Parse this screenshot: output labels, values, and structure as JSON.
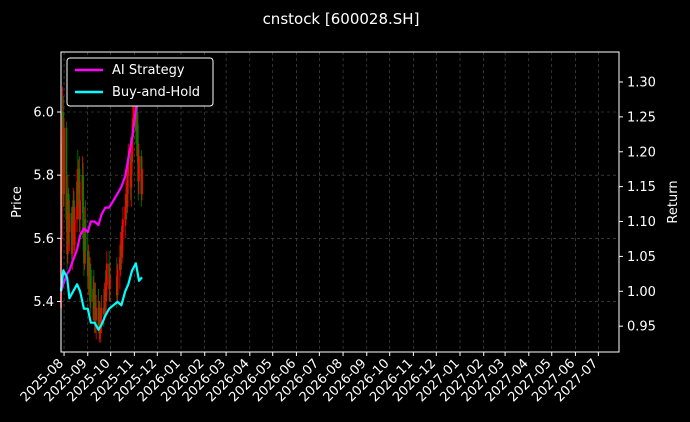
{
  "chart_data": {
    "type": "line",
    "title": "cnstock [600028.SH]",
    "ylabel": "Price",
    "y2label": "Return",
    "ylim": [
      5.24,
      6.19
    ],
    "y2lim": [
      0.913,
      1.343
    ],
    "xlim": [
      "2025-07-28",
      "2027-07-28"
    ],
    "yticks": [
      "5.4",
      "5.6",
      "5.8",
      "6.0"
    ],
    "y2ticks": [
      "0.95",
      "1.00",
      "1.05",
      "1.10",
      "1.15",
      "1.20",
      "1.25",
      "1.30"
    ],
    "xticks": [
      "2025-08",
      "2025-09",
      "2025-10",
      "2025-11",
      "2025-12",
      "2026-01",
      "2026-02",
      "2026-03",
      "2026-04",
      "2026-05",
      "2026-06",
      "2026-07",
      "2026-08",
      "2026-09",
      "2026-10",
      "2026-11",
      "2026-12",
      "2027-01",
      "2027-02",
      "2027-03",
      "2027-04",
      "2027-05",
      "2027-06",
      "2027-07"
    ],
    "grid": true,
    "legend_position": "top-left",
    "colors": {
      "up": "#ff0000",
      "down": "#008000",
      "strategy": "#ff00ff",
      "buyhold": "#00ffff",
      "grid": "#555555"
    },
    "candles_ohlc": [
      [
        "2025-07-28",
        5.38,
        5.62,
        5.36,
        5.6
      ],
      [
        "2025-07-29",
        5.6,
        5.9,
        5.56,
        5.86
      ],
      [
        "2025-07-30",
        5.86,
        6.08,
        5.8,
        6.0
      ],
      [
        "2025-07-31",
        6.0,
        6.05,
        5.7,
        5.74
      ],
      [
        "2025-08-01",
        5.74,
        5.98,
        5.7,
        5.95
      ],
      [
        "2025-08-04",
        5.95,
        5.97,
        5.62,
        5.66
      ],
      [
        "2025-08-05",
        5.66,
        5.74,
        5.5,
        5.55
      ],
      [
        "2025-08-06",
        5.55,
        5.8,
        5.52,
        5.74
      ],
      [
        "2025-08-07",
        5.74,
        5.76,
        5.58,
        5.62
      ],
      [
        "2025-08-08",
        5.62,
        5.72,
        5.56,
        5.68
      ],
      [
        "2025-08-11",
        5.68,
        5.7,
        5.52,
        5.55
      ],
      [
        "2025-08-12",
        5.55,
        5.7,
        5.5,
        5.64
      ],
      [
        "2025-08-13",
        5.64,
        5.76,
        5.58,
        5.72
      ],
      [
        "2025-08-14",
        5.72,
        5.75,
        5.56,
        5.58
      ],
      [
        "2025-08-15",
        5.58,
        5.7,
        5.54,
        5.66
      ],
      [
        "2025-08-18",
        5.66,
        5.82,
        5.62,
        5.78
      ],
      [
        "2025-08-19",
        5.78,
        5.88,
        5.7,
        5.74
      ],
      [
        "2025-08-20",
        5.74,
        5.85,
        5.66,
        5.82
      ],
      [
        "2025-08-21",
        5.82,
        5.86,
        5.62,
        5.66
      ],
      [
        "2025-08-22",
        5.66,
        5.78,
        5.6,
        5.72
      ],
      [
        "2025-08-25",
        5.72,
        5.86,
        5.68,
        5.8
      ],
      [
        "2025-08-26",
        5.8,
        5.84,
        5.56,
        5.6
      ],
      [
        "2025-08-27",
        5.6,
        5.66,
        5.48,
        5.52
      ],
      [
        "2025-08-28",
        5.52,
        5.7,
        5.5,
        5.66
      ],
      [
        "2025-08-29",
        5.66,
        5.72,
        5.52,
        5.56
      ],
      [
        "2025-09-01",
        5.56,
        5.62,
        5.44,
        5.48
      ],
      [
        "2025-09-02",
        5.48,
        5.58,
        5.42,
        5.54
      ],
      [
        "2025-09-03",
        5.54,
        5.56,
        5.4,
        5.44
      ],
      [
        "2025-09-04",
        5.44,
        5.54,
        5.38,
        5.5
      ],
      [
        "2025-09-05",
        5.5,
        5.52,
        5.36,
        5.4
      ],
      [
        "2025-09-08",
        5.4,
        5.48,
        5.34,
        5.44
      ],
      [
        "2025-09-09",
        5.44,
        5.5,
        5.34,
        5.38
      ],
      [
        "2025-09-10",
        5.38,
        5.46,
        5.3,
        5.42
      ],
      [
        "2025-09-11",
        5.42,
        5.46,
        5.3,
        5.34
      ],
      [
        "2025-09-12",
        5.34,
        5.42,
        5.28,
        5.38
      ],
      [
        "2025-09-15",
        5.38,
        5.44,
        5.3,
        5.32
      ],
      [
        "2025-09-16",
        5.32,
        5.4,
        5.27,
        5.36
      ],
      [
        "2025-09-17",
        5.36,
        5.4,
        5.28,
        5.3
      ],
      [
        "2025-09-18",
        5.3,
        5.38,
        5.27,
        5.35
      ],
      [
        "2025-09-19",
        5.35,
        5.42,
        5.3,
        5.38
      ],
      [
        "2025-09-22",
        5.38,
        5.44,
        5.32,
        5.36
      ],
      [
        "2025-09-23",
        5.36,
        5.46,
        5.34,
        5.43
      ],
      [
        "2025-09-24",
        5.43,
        5.5,
        5.36,
        5.4
      ],
      [
        "2025-09-25",
        5.4,
        5.48,
        5.35,
        5.45
      ],
      [
        "2025-09-26",
        5.45,
        5.56,
        5.42,
        5.52
      ],
      [
        "2025-09-29",
        5.52,
        5.56,
        5.4,
        5.44
      ],
      [
        "2025-09-30",
        5.44,
        5.52,
        5.4,
        5.48
      ],
      [
        "2025-10-09",
        5.48,
        5.54,
        5.38,
        5.42
      ],
      [
        "2025-10-10",
        5.42,
        5.52,
        5.4,
        5.5
      ],
      [
        "2025-10-13",
        5.5,
        5.58,
        5.44,
        5.54
      ],
      [
        "2025-10-14",
        5.54,
        5.62,
        5.48,
        5.58
      ],
      [
        "2025-10-15",
        5.58,
        5.64,
        5.5,
        5.54
      ],
      [
        "2025-10-16",
        5.54,
        5.66,
        5.52,
        5.62
      ],
      [
        "2025-10-17",
        5.62,
        5.7,
        5.56,
        5.66
      ],
      [
        "2025-10-20",
        5.66,
        5.74,
        5.6,
        5.7
      ],
      [
        "2025-10-21",
        5.7,
        5.78,
        5.64,
        5.74
      ],
      [
        "2025-10-22",
        5.74,
        5.82,
        5.66,
        5.7
      ],
      [
        "2025-10-23",
        5.7,
        5.84,
        5.68,
        5.8
      ],
      [
        "2025-10-24",
        5.8,
        5.9,
        5.74,
        5.86
      ],
      [
        "2025-10-27",
        5.86,
        5.92,
        5.72,
        5.76
      ],
      [
        "2025-10-28",
        5.76,
        5.88,
        5.7,
        5.84
      ],
      [
        "2025-10-29",
        5.84,
        5.96,
        5.8,
        5.92
      ],
      [
        "2025-10-30",
        5.92,
        6.02,
        5.86,
        5.98
      ],
      [
        "2025-10-31",
        5.98,
        6.1,
        5.92,
        6.06
      ],
      [
        "2025-11-03",
        6.06,
        6.12,
        5.9,
        5.94
      ],
      [
        "2025-11-04",
        5.94,
        6.04,
        5.86,
        6.0
      ],
      [
        "2025-11-05",
        6.0,
        6.06,
        5.84,
        5.88
      ],
      [
        "2025-11-06",
        5.88,
        5.96,
        5.72,
        5.78
      ],
      [
        "2025-11-07",
        5.78,
        5.9,
        5.74,
        5.86
      ],
      [
        "2025-11-10",
        5.86,
        5.88,
        5.7,
        5.74
      ],
      [
        "2025-11-11",
        5.74,
        5.86,
        5.72,
        5.82
      ]
    ],
    "series": [
      {
        "name": "AI Strategy",
        "axis": "right",
        "dates": [
          "2025-07-28",
          "2025-07-31",
          "2025-08-05",
          "2025-08-08",
          "2025-08-13",
          "2025-08-18",
          "2025-08-22",
          "2025-08-27",
          "2025-09-01",
          "2025-09-05",
          "2025-09-10",
          "2025-09-15",
          "2025-09-19",
          "2025-09-24",
          "2025-09-29",
          "2025-10-10",
          "2025-10-15",
          "2025-10-20",
          "2025-10-24",
          "2025-10-29",
          "2025-11-03",
          "2025-11-07",
          "2025-11-11"
        ],
        "values": [
          1.0,
          1.01,
          1.025,
          1.03,
          1.045,
          1.06,
          1.08,
          1.09,
          1.085,
          1.1,
          1.1,
          1.095,
          1.11,
          1.12,
          1.12,
          1.14,
          1.15,
          1.165,
          1.19,
          1.22,
          1.26,
          1.28,
          1.285
        ]
      },
      {
        "name": "Buy-and-Hold",
        "axis": "right",
        "dates": [
          "2025-07-28",
          "2025-07-31",
          "2025-08-05",
          "2025-08-08",
          "2025-08-13",
          "2025-08-18",
          "2025-08-22",
          "2025-08-27",
          "2025-09-01",
          "2025-09-05",
          "2025-09-10",
          "2025-09-15",
          "2025-09-19",
          "2025-09-24",
          "2025-09-29",
          "2025-10-10",
          "2025-10-15",
          "2025-10-20",
          "2025-10-24",
          "2025-10-29",
          "2025-11-03",
          "2025-11-07",
          "2025-11-11"
        ],
        "values": [
          1.0,
          1.03,
          1.02,
          0.99,
          1.0,
          1.01,
          1.0,
          0.975,
          0.975,
          0.955,
          0.955,
          0.945,
          0.952,
          0.965,
          0.975,
          0.985,
          0.98,
          1.0,
          1.01,
          1.03,
          1.04,
          1.015,
          1.02
        ]
      }
    ]
  }
}
